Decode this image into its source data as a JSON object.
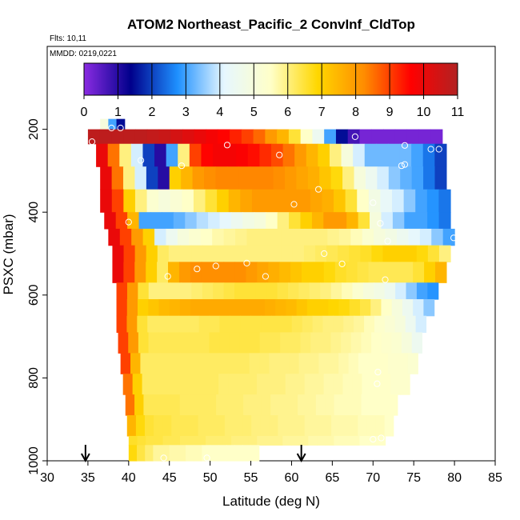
{
  "chart_data": {
    "type": "heatmap",
    "title": "ATOM2 Northeast_Pacific_2 ConvInf_CldTop",
    "notes": [
      "Flts: 10,11",
      "MMDD: 0219,0221"
    ],
    "xlabel": "Latitude (deg N)",
    "ylabel": "PSXC (mbar)",
    "xlim": [
      30,
      85
    ],
    "ylim": [
      1000,
      0
    ],
    "x_ticks": [
      30,
      35,
      40,
      45,
      50,
      55,
      60,
      65,
      70,
      75,
      80,
      85
    ],
    "y_ticks": [
      200,
      400,
      600,
      800,
      1000
    ],
    "colorbar": {
      "min": 0,
      "max": 11,
      "ticks": [
        0,
        1,
        2,
        3,
        4,
        5,
        6,
        7,
        8,
        9,
        10,
        11
      ],
      "stops": [
        "#8a2be2",
        "#00008b",
        "#1e90ff",
        "#e6f7ff",
        "#ffffc8",
        "#ffd700",
        "#ff8c00",
        "#ff0000",
        "#b22222"
      ]
    },
    "layers": [
      {
        "ptop": 175,
        "pbot": 200,
        "lat_start": 36.5,
        "lat_end": 39.5,
        "values": [
          5,
          3,
          1.5
        ]
      },
      {
        "ptop": 200,
        "pbot": 235,
        "lat_start": 35.0,
        "lat_end": 78.5,
        "values": [
          10.8,
          10.8,
          10.8,
          10.8,
          10.8,
          10.7,
          10.6,
          10.4,
          10.2,
          10.0,
          9.8,
          9.6,
          9.3,
          9.0,
          8.6,
          8.0,
          7.5,
          6.5,
          5.5,
          4.5,
          3.0,
          1.5,
          0.7,
          0.2,
          0.2,
          0.2,
          0.2,
          0.2,
          0.2,
          0.2
        ]
      },
      {
        "ptop": 235,
        "pbot": 290,
        "lat_start": 36.0,
        "lat_end": 79.0,
        "values": [
          10.0,
          8.5,
          6.0,
          4.0,
          2.0,
          1.0,
          3.0,
          6.0,
          9.0,
          9.6,
          9.8,
          9.8,
          9.7,
          9.5,
          9.2,
          8.9,
          8.5,
          8.0,
          7.5,
          7.0,
          6.0,
          5.0,
          4.0,
          3.3,
          3.3,
          3.3,
          3.3,
          3.0,
          2.5,
          2.0
        ]
      },
      {
        "ptop": 290,
        "pbot": 345,
        "lat_start": 36.5,
        "lat_end": 79.0,
        "values": [
          10.0,
          8.5,
          6.0,
          4.0,
          2.0,
          1.0,
          7.0,
          7.5,
          8.0,
          8.2,
          8.3,
          8.3,
          8.3,
          8.3,
          8.3,
          8.2,
          8.0,
          7.8,
          7.6,
          7.2,
          6.8,
          6.0,
          5.0,
          4.5,
          4.0,
          3.5,
          3.2,
          3.0,
          2.5,
          2.0
        ]
      },
      {
        "ptop": 345,
        "pbot": 400,
        "lat_start": 36.5,
        "lat_end": 79.5,
        "values": [
          10.0,
          9.0,
          7.0,
          6.0,
          5.3,
          5.0,
          5.2,
          5.5,
          6.0,
          6.5,
          7.0,
          7.5,
          7.8,
          8.0,
          8.0,
          8.0,
          8.0,
          8.0,
          7.8,
          7.6,
          7.2,
          6.5,
          5.5,
          4.8,
          4.3,
          4.0,
          3.5,
          3.0,
          2.8,
          2.5
        ]
      },
      {
        "ptop": 400,
        "pbot": 440,
        "lat_start": 37.0,
        "lat_end": 79.5,
        "values": [
          10.0,
          9.0,
          7.5,
          3.0,
          3.0,
          3.0,
          3.2,
          3.5,
          3.8,
          4.0,
          4.2,
          4.5,
          4.8,
          5.0,
          5.5,
          6.0,
          6.5,
          7.0,
          7.5,
          8.0,
          8.0,
          7.5,
          6.5,
          5.0,
          4.0,
          3.5,
          3.0,
          3.0,
          2.8,
          2.5
        ]
      },
      {
        "ptop": 440,
        "pbot": 480,
        "lat_start": 37.5,
        "lat_end": 80.0,
        "values": [
          10.0,
          9.0,
          8.0,
          7.0,
          4.0,
          4.5,
          5.0,
          5.3,
          5.5,
          5.7,
          5.8,
          5.9,
          6.0,
          6.0,
          6.0,
          6.0,
          6.0,
          6.0,
          6.0,
          5.9,
          5.8,
          5.6,
          5.3,
          5.0,
          4.8,
          4.5,
          4.2,
          4.0,
          3.5,
          3.0
        ]
      },
      {
        "ptop": 480,
        "pbot": 520,
        "lat_start": 38.0,
        "lat_end": 79.5,
        "values": [
          10.0,
          9.0,
          8.0,
          7.0,
          6.2,
          6.0,
          6.0,
          6.0,
          6.0,
          6.0,
          6.0,
          6.0,
          6.0,
          6.0,
          6.0,
          6.0,
          6.0,
          6.1,
          6.2,
          6.3,
          6.4,
          6.5,
          6.6,
          6.8,
          7.0,
          7.0,
          7.0,
          6.8,
          6.5,
          6.0
        ]
      },
      {
        "ptop": 520,
        "pbot": 570,
        "lat_start": 38.0,
        "lat_end": 79.0,
        "values": [
          10.0,
          9.0,
          8.0,
          7.0,
          6.2,
          7.5,
          8.0,
          8.2,
          8.2,
          8.2,
          8.2,
          8.2,
          8.0,
          7.8,
          7.6,
          7.4,
          7.2,
          7.0,
          7.0,
          6.8,
          6.6,
          6.5,
          6.4,
          6.3,
          6.3,
          6.3,
          6.3,
          6.5,
          7.0,
          7.5
        ]
      },
      {
        "ptop": 570,
        "pbot": 610,
        "lat_start": 38.5,
        "lat_end": 78.0,
        "values": [
          9.0,
          8.0,
          6.5,
          6.0,
          6.0,
          6.0,
          6.0,
          6.1,
          6.2,
          6.3,
          6.4,
          6.5,
          6.5,
          6.5,
          6.5,
          6.4,
          6.3,
          6.2,
          6.1,
          6.0,
          5.8,
          5.6,
          5.3,
          5.0,
          4.8,
          4.5,
          4.0,
          3.5,
          3.0,
          2.8
        ]
      },
      {
        "ptop": 610,
        "pbot": 650,
        "lat_start": 38.5,
        "lat_end": 77.5,
        "values": [
          9.0,
          8.0,
          7.0,
          7.2,
          7.4,
          7.5,
          7.6,
          7.7,
          7.7,
          7.7,
          7.7,
          7.7,
          7.7,
          7.7,
          7.6,
          7.5,
          7.4,
          7.2,
          7.0,
          7.0,
          6.9,
          6.8,
          6.6,
          6.4,
          6.0,
          5.5,
          5.0,
          4.5,
          4.0,
          3.5
        ]
      },
      {
        "ptop": 650,
        "pbot": 690,
        "lat_start": 38.5,
        "lat_end": 76.5,
        "values": [
          9.0,
          8.0,
          6.5,
          6.2,
          6.2,
          6.2,
          6.2,
          6.2,
          6.3,
          6.3,
          6.4,
          6.4,
          6.4,
          6.4,
          6.4,
          6.4,
          6.4,
          6.3,
          6.2,
          6.1,
          6.0,
          6.0,
          5.9,
          5.8,
          5.6,
          5.4,
          5.2,
          5.0,
          4.5,
          4.0
        ]
      },
      {
        "ptop": 690,
        "pbot": 740,
        "lat_start": 38.7,
        "lat_end": 76.0,
        "values": [
          9.0,
          8.0,
          6.5,
          6.3,
          6.3,
          6.3,
          6.3,
          6.3,
          6.3,
          6.4,
          6.4,
          6.4,
          6.4,
          6.4,
          6.3,
          6.3,
          6.2,
          6.2,
          6.1,
          6.0,
          6.0,
          5.9,
          5.8,
          5.7,
          5.6,
          5.5,
          5.4,
          5.3,
          5.0,
          4.5
        ]
      },
      {
        "ptop": 740,
        "pbot": 790,
        "lat_start": 39.0,
        "lat_end": 75.5,
        "values": [
          9.0,
          7.5,
          6.2,
          6.2,
          6.2,
          6.2,
          6.2,
          6.2,
          6.2,
          6.2,
          6.2,
          6.2,
          6.2,
          6.1,
          6.1,
          6.0,
          6.0,
          6.0,
          5.9,
          5.9,
          5.8,
          5.8,
          5.7,
          5.6,
          5.5,
          5.5,
          5.5,
          5.4,
          5.4,
          5.3
        ]
      },
      {
        "ptop": 790,
        "pbot": 840,
        "lat_start": 39.3,
        "lat_end": 74.5,
        "values": [
          8.5,
          7.0,
          6.2,
          6.2,
          6.2,
          6.2,
          6.2,
          6.2,
          6.2,
          6.2,
          6.1,
          6.1,
          6.1,
          6.1,
          6.0,
          6.0,
          6.0,
          5.9,
          5.9,
          5.8,
          5.8,
          5.7,
          5.7,
          5.6,
          5.6,
          5.5,
          5.5,
          5.5,
          5.4,
          5.4
        ]
      },
      {
        "ptop": 840,
        "pbot": 890,
        "lat_start": 39.6,
        "lat_end": 73.0,
        "values": [
          8.5,
          7.0,
          6.3,
          6.3,
          6.3,
          6.3,
          6.2,
          6.2,
          6.2,
          6.2,
          6.1,
          6.1,
          6.1,
          6.0,
          6.0,
          6.0,
          5.9,
          5.9,
          5.9,
          5.8,
          5.8,
          5.7,
          5.7,
          5.6,
          5.6,
          5.6,
          5.5,
          5.5,
          5.5,
          5.5
        ]
      },
      {
        "ptop": 890,
        "pbot": 940,
        "lat_start": 39.8,
        "lat_end": 72.5,
        "values": [
          7.5,
          6.8,
          6.5,
          6.4,
          6.4,
          6.3,
          6.3,
          6.3,
          6.2,
          6.2,
          6.2,
          6.1,
          6.1,
          6.1,
          6.0,
          6.0,
          6.0,
          5.9,
          5.9,
          5.9,
          5.8,
          5.8,
          5.8,
          5.7,
          5.7,
          5.7,
          5.6,
          5.6,
          5.6,
          5.5
        ]
      },
      {
        "ptop": 940,
        "pbot": 962,
        "lat_start": 40.0,
        "lat_end": 71.5,
        "values": [
          6.6,
          6.5,
          6.4,
          6.4,
          6.3,
          6.3,
          6.2,
          6.2,
          6.2,
          6.1,
          6.1,
          6.1,
          6.0,
          6.0,
          6.0,
          5.9,
          5.9,
          5.9,
          5.8,
          5.8,
          5.8,
          5.7,
          5.7,
          5.7,
          5.6,
          5.6,
          5.6,
          5.5,
          5.5,
          5.5
        ]
      },
      {
        "ptop": 962,
        "pbot": 1000,
        "lat_start": 40.0,
        "lat_end": 56.0,
        "values": [
          6.8,
          6.4,
          6.1,
          5.8,
          5.8,
          5.7,
          5.7,
          5.6,
          5.6,
          5.5,
          5.5,
          5.5,
          5.5,
          5.5,
          5.5,
          5.5
        ]
      }
    ],
    "markers": [
      {
        "lat": 35.5,
        "p": 230
      },
      {
        "lat": 37.9,
        "p": 197
      },
      {
        "lat": 39.0,
        "p": 197
      },
      {
        "lat": 41.5,
        "p": 275
      },
      {
        "lat": 46.5,
        "p": 288
      },
      {
        "lat": 52.1,
        "p": 238
      },
      {
        "lat": 58.5,
        "p": 262
      },
      {
        "lat": 63.3,
        "p": 345
      },
      {
        "lat": 60.3,
        "p": 381
      },
      {
        "lat": 67.8,
        "p": 218
      },
      {
        "lat": 70.0,
        "p": 377
      },
      {
        "lat": 70.9,
        "p": 427
      },
      {
        "lat": 73.9,
        "p": 239
      },
      {
        "lat": 73.5,
        "p": 288
      },
      {
        "lat": 73.9,
        "p": 285
      },
      {
        "lat": 77.1,
        "p": 248
      },
      {
        "lat": 78.1,
        "p": 248
      },
      {
        "lat": 79.9,
        "p": 462
      },
      {
        "lat": 40.0,
        "p": 424
      },
      {
        "lat": 48.4,
        "p": 537
      },
      {
        "lat": 50.7,
        "p": 530
      },
      {
        "lat": 54.5,
        "p": 523
      },
      {
        "lat": 56.8,
        "p": 555
      },
      {
        "lat": 44.8,
        "p": 555
      },
      {
        "lat": 64.0,
        "p": 500
      },
      {
        "lat": 66.2,
        "p": 525
      },
      {
        "lat": 71.8,
        "p": 470
      },
      {
        "lat": 70.6,
        "p": 786
      },
      {
        "lat": 70.5,
        "p": 814
      },
      {
        "lat": 71.0,
        "p": 945
      },
      {
        "lat": 70.0,
        "p": 948
      },
      {
        "lat": 44.3,
        "p": 993
      },
      {
        "lat": 49.6,
        "p": 993
      },
      {
        "lat": 71.5,
        "p": 563
      }
    ],
    "arrows": [
      {
        "lat": 34.7
      },
      {
        "lat": 61.2
      }
    ]
  }
}
